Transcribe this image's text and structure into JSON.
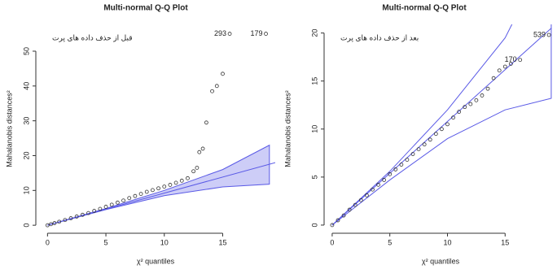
{
  "chart_data": [
    {
      "type": "scatter",
      "title": "Multi-normal Q-Q Plot",
      "x_label": "χ² quantiles",
      "y_label": "Mahalanobis distances²",
      "annotation": "قبل از حذف داده های پرت",
      "xlim": [
        -1,
        19.5
      ],
      "ylim": [
        -2.3,
        57.7
      ],
      "xticks": [
        0,
        5,
        10,
        15
      ],
      "yticks": [
        0,
        10,
        20,
        30,
        40,
        50
      ],
      "color": "#333333",
      "x": [
        0,
        0.3,
        0.6,
        1,
        1.5,
        2,
        2.5,
        3,
        3.5,
        4,
        4.5,
        5,
        5.5,
        6,
        6.5,
        7,
        7.5,
        8,
        8.5,
        9,
        9.5,
        10,
        10.5,
        11,
        11.5,
        12,
        12.5,
        12.8,
        13,
        13.3,
        13.6,
        14.1,
        14.5,
        15,
        15.6,
        18.7
      ],
      "y": [
        0,
        0.3,
        0.6,
        1,
        1.5,
        2,
        2.5,
        3,
        3.5,
        4.1,
        4.7,
        5.3,
        5.9,
        6.5,
        7.1,
        7.8,
        8.4,
        9,
        9.6,
        10.1,
        10.6,
        11.1,
        11.6,
        12.2,
        12.8,
        13.5,
        15.5,
        16.5,
        21,
        22,
        29.5,
        38.5,
        40,
        43.5,
        55,
        55
      ],
      "point_labels": [
        null,
        null,
        null,
        null,
        null,
        null,
        null,
        null,
        null,
        null,
        null,
        null,
        null,
        null,
        null,
        null,
        null,
        null,
        null,
        null,
        null,
        null,
        null,
        null,
        null,
        null,
        null,
        null,
        null,
        null,
        null,
        null,
        null,
        null,
        "293",
        "179"
      ],
      "reference": {
        "x": [
          0,
          19.5
        ],
        "y": [
          0,
          18
        ],
        "color": "#5a5ae6"
      },
      "band": {
        "x": [
          0,
          5,
          10,
          15,
          19
        ],
        "upper": [
          0,
          4.8,
          10,
          16,
          23
        ],
        "lower": [
          0,
          4.5,
          8.5,
          11,
          11.8
        ],
        "color": "#5a5ae6",
        "fill": true
      }
    },
    {
      "type": "scatter",
      "title": "Multi-normal Q-Q Plot",
      "x_label": "χ² quantiles",
      "y_label": "Mahalanobis distances²",
      "annotation": "بعد از حذف داده های پرت",
      "xlim": [
        -0.7,
        19.5
      ],
      "ylim": [
        -0.85,
        20.9
      ],
      "xticks": [
        0,
        5,
        10,
        15
      ],
      "yticks": [
        0,
        5,
        10,
        15,
        20
      ],
      "color": "#333333",
      "x": [
        0,
        0.5,
        1,
        1.5,
        2,
        2.5,
        3,
        3.5,
        4,
        4.5,
        5,
        5.5,
        6,
        6.5,
        7,
        7.5,
        8,
        8.5,
        9,
        9.5,
        10,
        10.5,
        11,
        11.5,
        12,
        12.5,
        13,
        13.5,
        14,
        14.5,
        15,
        15.5,
        16.3,
        18.8
      ],
      "y": [
        0,
        0.5,
        1,
        1.6,
        2.1,
        2.6,
        3.1,
        3.7,
        4.2,
        4.7,
        5.3,
        5.8,
        6.3,
        6.8,
        7.4,
        7.9,
        8.4,
        8.9,
        9.5,
        10,
        10.5,
        11.2,
        11.8,
        12.3,
        12.6,
        13,
        13.5,
        14.2,
        15.3,
        16.1,
        16.5,
        16.8,
        17.2,
        19.8
      ],
      "point_labels": [
        null,
        null,
        null,
        null,
        null,
        null,
        null,
        null,
        null,
        null,
        null,
        null,
        null,
        null,
        null,
        null,
        null,
        null,
        null,
        null,
        null,
        null,
        null,
        null,
        null,
        null,
        null,
        null,
        null,
        null,
        null,
        null,
        "170",
        "539"
      ],
      "reference": {
        "x": [
          0,
          19
        ],
        "y": [
          0,
          20.5
        ],
        "color": "#5a5ae6"
      },
      "band": {
        "x": [
          0,
          5,
          10,
          15,
          19
        ],
        "upper": [
          0,
          5.6,
          12,
          19.5,
          29
        ],
        "lower": [
          0,
          4.7,
          9,
          12,
          13.2
        ],
        "color": "#5a5ae6",
        "fill": false
      }
    }
  ]
}
